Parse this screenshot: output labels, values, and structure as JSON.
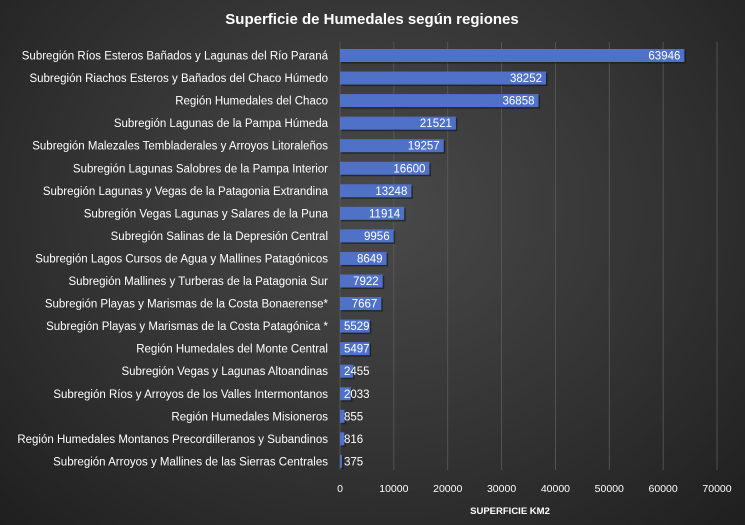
{
  "chart_data": {
    "type": "bar",
    "orientation": "horizontal",
    "title": "Superficie de Humedales según regiones",
    "xlabel": "SUPERFICIE KM2",
    "ylabel": "",
    "xlim": [
      0,
      70000
    ],
    "x_ticks": [
      "0",
      "10000",
      "20000",
      "30000",
      "40000",
      "50000",
      "60000",
      "70000"
    ],
    "grid": true,
    "legend": "none",
    "bar_color": "#4f72c8",
    "categories": [
      "Subregión Ríos Esteros Bañados y Lagunas del Río Paraná",
      "Subregión Riachos Esteros y Bañados del Chaco Húmedo",
      "Región Humedales del Chaco",
      "Subregión Lagunas de la Pampa Húmeda",
      "Subregión Malezales Tembladerales y Arroyos Litoraleños",
      "Subregión Lagunas Salobres de la Pampa Interior",
      "Subregión Lagunas y Vegas de la Patagonia Extrandina",
      "Subregión Vegas Lagunas y Salares de la Puna",
      "Subregión Salinas de la Depresión Central",
      "Subregión Lagos Cursos de Agua y Mallines Patagónicos",
      "Subregión Mallines y Turberas de la Patagonia Sur",
      "Subregión Playas y Marismas de la Costa Bonaerense*",
      "Subregión Playas y Marismas de la Costa Patagónica *",
      "Región Humedales del Monte Central",
      "Subregión Vegas y Lagunas Altoandinas",
      "Subregión Ríos y Arroyos de los Valles Intermontanos",
      "Región Humedales Misioneros",
      "Región Humedales Montanos Precordilleranos y Subandinos",
      "Subregión Arroyos y Mallines de las Sierras Centrales"
    ],
    "values": [
      63946,
      38252,
      36858,
      21521,
      19257,
      16600,
      13248,
      11914,
      9956,
      8649,
      7922,
      7667,
      5529,
      5497,
      2455,
      2033,
      855,
      816,
      375
    ],
    "value_labels": [
      "63946",
      "38252",
      "36858",
      "21521",
      "19257",
      "16600",
      "13248",
      "11914",
      "9956",
      "8649",
      "7922",
      "7667",
      "5529",
      "5497",
      "2455",
      "2033",
      "855",
      "816",
      "375"
    ]
  }
}
